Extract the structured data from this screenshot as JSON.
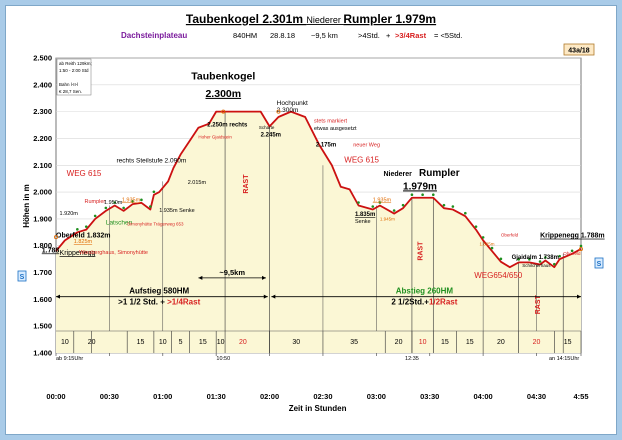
{
  "chart_data": {
    "type": "area",
    "title": {
      "part1": "Taubenkogel 2.301m",
      "part2": "Niederer",
      "part3": "Rumpler 1.979m"
    },
    "info": {
      "region": "Dachsteinplateau",
      "hm": "840HM",
      "date": "28.8.18",
      "distance": "~9,5 km",
      "hours": ">4Std.",
      "plus": "+",
      "rast": ">3/4Rast",
      "total": "= <5Std."
    },
    "badge": "43a/18",
    "xlabel": "Zeit in Stunden",
    "ylabel": "Höhen in m",
    "x_unit_note": "minutes after start (00:00)",
    "xlim": [
      0,
      295
    ],
    "ylim": [
      1400,
      2500
    ],
    "x_ticks": [
      {
        "x": 0,
        "label": "00:00"
      },
      {
        "x": 30,
        "label": "00:30"
      },
      {
        "x": 60,
        "label": "01:00"
      },
      {
        "x": 90,
        "label": "01:30"
      },
      {
        "x": 120,
        "label": "02:00"
      },
      {
        "x": 150,
        "label": "02:30"
      },
      {
        "x": 180,
        "label": "03:00"
      },
      {
        "x": 210,
        "label": "03:30"
      },
      {
        "x": 240,
        "label": "04:00"
      },
      {
        "x": 270,
        "label": "04:30"
      },
      {
        "x": 295,
        "label": "4:55"
      }
    ],
    "y_ticks": [
      {
        "y": 1400,
        "label": "1.400"
      },
      {
        "y": 1500,
        "label": "1.500"
      },
      {
        "y": 1600,
        "label": "1.600"
      },
      {
        "y": 1700,
        "label": "1.700"
      },
      {
        "y": 1800,
        "label": "1.800"
      },
      {
        "y": 1900,
        "label": "1.900"
      },
      {
        "y": 2000,
        "label": "2.000"
      },
      {
        "y": 2100,
        "label": "2.100"
      },
      {
        "y": 2200,
        "label": "2.200"
      },
      {
        "y": 2300,
        "label": "2.300"
      },
      {
        "y": 2400,
        "label": "2.400"
      },
      {
        "y": 2500,
        "label": "2.500"
      }
    ],
    "series": [
      {
        "x": [
          0,
          5,
          12,
          17,
          22,
          28,
          33,
          38,
          43,
          48,
          53,
          55,
          58,
          63,
          66,
          70,
          76,
          80,
          86,
          90,
          95,
          100,
          110,
          115,
          120,
          125,
          132,
          140,
          148,
          155,
          160,
          165,
          170,
          178,
          182,
          190,
          195,
          200,
          206,
          212,
          218,
          223,
          230,
          236,
          240,
          245,
          250,
          255,
          260,
          266,
          272,
          275,
          280,
          283,
          290,
          295
        ],
        "values": [
          1780,
          1820,
          1850,
          1860,
          1900,
          1930,
          1950,
          1930,
          1955,
          1960,
          1935,
          1990,
          2000,
          2040,
          2090,
          2140,
          2200,
          2240,
          2255,
          2300,
          2300,
          2300,
          2300,
          2300,
          2245,
          2280,
          2300,
          2280,
          2175,
          2100,
          2020,
          2010,
          1950,
          1935,
          1950,
          1920,
          1940,
          1979,
          1979,
          1979,
          1940,
          1935,
          1910,
          1860,
          1820,
          1780,
          1740,
          1720,
          1738,
          1738,
          1730,
          1745,
          1720,
          1750,
          1770,
          1788
        ]
      }
    ],
    "rest_intervals": [
      [
        95,
        120
      ],
      [
        200,
        212
      ],
      [
        260,
        285
      ]
    ],
    "segment_boundaries": [
      10,
      20,
      40,
      55,
      65,
      75,
      90,
      120,
      150,
      185,
      200,
      212,
      225,
      240,
      260,
      280,
      295
    ],
    "segment_labels": [
      {
        "x": 5,
        "text": "10"
      },
      {
        "x": 20,
        "text": "20"
      },
      {
        "x": 47.5,
        "text": "15"
      },
      {
        "x": 60,
        "text": "10"
      },
      {
        "x": 70,
        "text": "5"
      },
      {
        "x": 82.5,
        "text": "15"
      },
      {
        "x": 92.5,
        "text": "10"
      },
      {
        "x": 105,
        "text": "20",
        "color": "red"
      },
      {
        "x": 135,
        "text": "30"
      },
      {
        "x": 167.5,
        "text": "35"
      },
      {
        "x": 192.5,
        "text": "20"
      },
      {
        "x": 206,
        "text": "10",
        "color": "red"
      },
      {
        "x": 218.5,
        "text": "15"
      },
      {
        "x": 232.5,
        "text": "15"
      },
      {
        "x": 250,
        "text": "20"
      },
      {
        "x": 270,
        "text": "20",
        "color": "red"
      },
      {
        "x": 287.5,
        "text": "15"
      }
    ],
    "time_notes": [
      {
        "x": 0,
        "text": "ab 9:15Uhr"
      },
      {
        "x": 94,
        "text": "10:50"
      },
      {
        "x": 200,
        "text": "12:35"
      },
      {
        "x": 294,
        "text": "an 14:15Uhr"
      }
    ],
    "rest_labels": [
      {
        "x": 108,
        "y": 2030,
        "text": "RAST"
      },
      {
        "x": 206,
        "y": 1780,
        "text": "RAST"
      },
      {
        "x": 272,
        "y": 1580,
        "text": "RAST"
      }
    ],
    "annotations": [
      {
        "x": 0,
        "y": 1830,
        "text": "Oberfeld 1.832m",
        "style": "bold"
      },
      {
        "x": 2,
        "y": 1765,
        "text": "Krippenegg",
        "style": "underline"
      },
      {
        "x": -8,
        "y": 1775,
        "text": "1.788",
        "style": "bold-underline"
      },
      {
        "x": 2,
        "y": 1915,
        "text": "1.920m",
        "style": "small"
      },
      {
        "x": 10,
        "y": 1810,
        "text": "1.825m",
        "style": "small-orange"
      },
      {
        "x": 13,
        "y": 1770,
        "text": "Wiesberghaus, Simonyhütte",
        "style": "small-red"
      },
      {
        "x": 16,
        "y": 1960,
        "text": "Rumpler",
        "style": "small-red"
      },
      {
        "x": 27,
        "y": 1955,
        "text": "1.950m",
        "style": "small"
      },
      {
        "x": 28,
        "y": 1880,
        "text": "Latschen",
        "style": "green"
      },
      {
        "x": 37,
        "y": 1965,
        "text": "1.935m",
        "style": "small-orange"
      },
      {
        "x": 40,
        "y": 1875,
        "text": "Simonyhütte Trägerweg 653",
        "style": "tiny-red"
      },
      {
        "x": 58,
        "y": 1925,
        "text": "1.935m Senke",
        "style": "small"
      },
      {
        "x": 80,
        "y": 2200,
        "text": "Hoher Gjaidstein",
        "style": "tiny-red"
      },
      {
        "x": 34,
        "y": 2110,
        "text": "rechts Steilstufe 2.090m",
        "style": "normal"
      },
      {
        "x": 74,
        "y": 2030,
        "text": "2.015m",
        "style": "small"
      },
      {
        "x": 85,
        "y": 2245,
        "text": "2.250m rechts",
        "style": "bold-small"
      },
      {
        "x": 94,
        "y": 2420,
        "text": "Taubenkogel",
        "style": "peak"
      },
      {
        "x": 94,
        "y": 2355,
        "text": "2.300m",
        "style": "peak-underline"
      },
      {
        "x": 124,
        "y": 2325,
        "text": "Hochpunkt",
        "style": "normal"
      },
      {
        "x": 124,
        "y": 2298,
        "text": "2.300m",
        "style": "normal"
      },
      {
        "x": 114,
        "y": 2235,
        "text": "Scharte",
        "style": "tiny"
      },
      {
        "x": 115,
        "y": 2208,
        "text": "2.245m",
        "style": "bold-small"
      },
      {
        "x": 145,
        "y": 2260,
        "text": "stets markiert",
        "style": "small-red"
      },
      {
        "x": 145,
        "y": 2232,
        "text": "etwas ausgesetzt",
        "style": "small"
      },
      {
        "x": 146,
        "y": 2170,
        "text": "2.175m",
        "style": "bold-small"
      },
      {
        "x": 167,
        "y": 2170,
        "text": "neuer Weg",
        "style": "small-red"
      },
      {
        "x": 162,
        "y": 2110,
        "text": "WEG 615",
        "style": "weg"
      },
      {
        "x": 6,
        "y": 2060,
        "text": "WEG 615",
        "style": "weg"
      },
      {
        "x": 168,
        "y": 1910,
        "text": "1.835m",
        "style": "bold-small-underline"
      },
      {
        "x": 168,
        "y": 1885,
        "text": "Senke",
        "style": "small"
      },
      {
        "x": 178,
        "y": 1965,
        "text": "1.935m",
        "style": "small-orange"
      },
      {
        "x": 182,
        "y": 1895,
        "text": "1.945m",
        "style": "tiny-orange"
      },
      {
        "x": 184,
        "y": 2060,
        "text": "Niederer",
        "style": "bold"
      },
      {
        "x": 204,
        "y": 2060,
        "text": "Rumpler",
        "style": "title-like"
      },
      {
        "x": 195,
        "y": 2010,
        "text": "1.979m",
        "style": "title-underline"
      },
      {
        "x": 238,
        "y": 1800,
        "text": "1.825m",
        "style": "tiny-orange"
      },
      {
        "x": 250,
        "y": 1835,
        "text": "Oberfeld",
        "style": "tiny-red"
      },
      {
        "x": 235,
        "y": 1680,
        "text": "WEG654/650",
        "style": "weg"
      },
      {
        "x": 256,
        "y": 1750,
        "text": "Gjaidalm 1.738m",
        "style": "bold-small"
      },
      {
        "x": 262,
        "y": 1720,
        "text": "Schilcherhaus",
        "style": "tiny"
      },
      {
        "x": 272,
        "y": 1830,
        "text": "Krippenegg 1.788m",
        "style": "bold-underline"
      },
      {
        "x": 285,
        "y": 1765,
        "text": "Oberfeld",
        "style": "tiny-red"
      }
    ],
    "left_box": [
      "ab Reith 129km;",
      "1:50 - 2:00 Std",
      "",
      "Bahn l-II-l",
      "€ 28,7 Sen."
    ],
    "left_marker": "S",
    "right_marker": "S",
    "km_label": "~9,5km",
    "aufstieg": {
      "line1": "Aufstieg  580HM",
      "line2a": ">1 1/2 Std.",
      "line2b": "+",
      "line2c": ">1/4Rast"
    },
    "abstieg": {
      "line1": "Abstieg 260HM",
      "line2a": "2 1/2Std.",
      "line2b": "+",
      "line2c": "1/2Rast"
    },
    "colors": {
      "profile": "#cc1111",
      "fill": "#fbf7d5",
      "rest": "#d71f1f",
      "green": "#1f8f1f",
      "orange": "#e06a00",
      "purple": "#7a1a9c",
      "blue_marker": "#1a6fc4",
      "background": "#a9cbe8"
    },
    "grid": true
  }
}
